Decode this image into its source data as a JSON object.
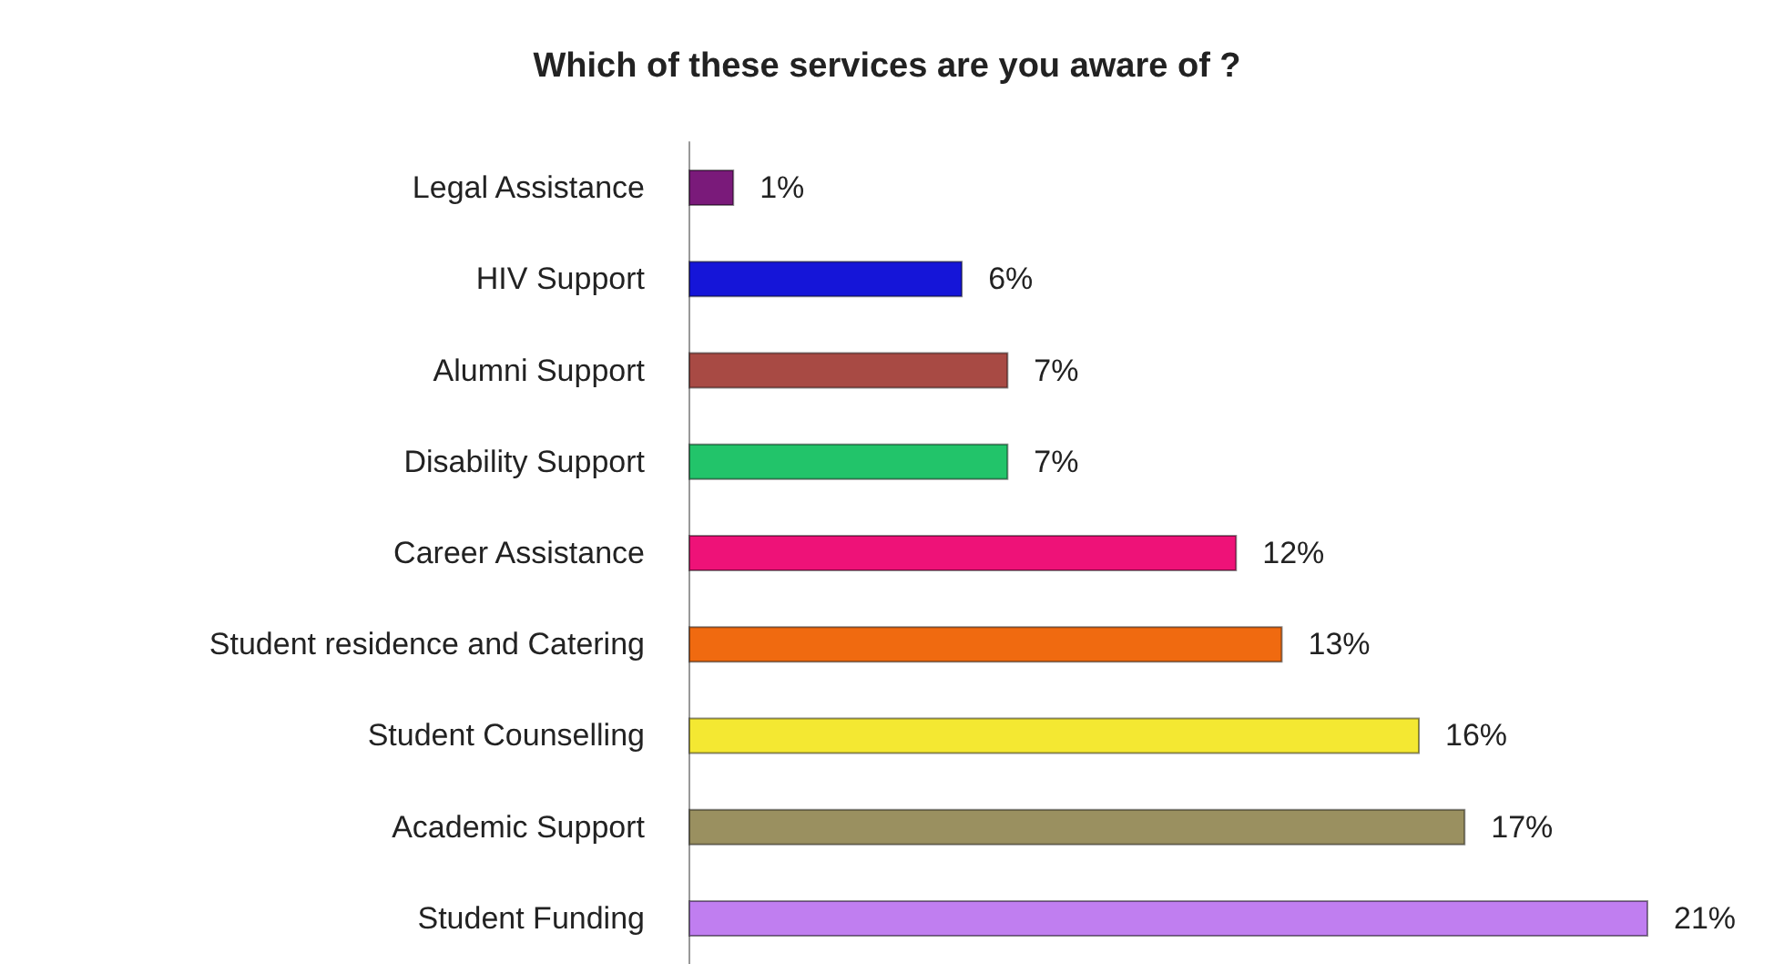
{
  "chart_data": {
    "type": "bar",
    "orientation": "horizontal",
    "title": "Which of these services are you aware of ?",
    "categories": [
      "Legal Assistance",
      "HIV Support",
      "Alumni Support",
      "Disability Support",
      "Career Assistance",
      "Student residence and Catering",
      "Student Counselling",
      "Academic Support",
      "Student Funding"
    ],
    "values": [
      1,
      6,
      7,
      7,
      12,
      13,
      16,
      17,
      21
    ],
    "colors": [
      "#7a1a7a",
      "#1515d8",
      "#a84a44",
      "#22c46a",
      "#ee1278",
      "#f06a10",
      "#f4e832",
      "#9a9060",
      "#c07ef0"
    ],
    "value_labels": [
      "1%",
      "6%",
      "7%",
      "7%",
      "12%",
      "13%",
      "16%",
      "17%",
      "21%"
    ]
  }
}
